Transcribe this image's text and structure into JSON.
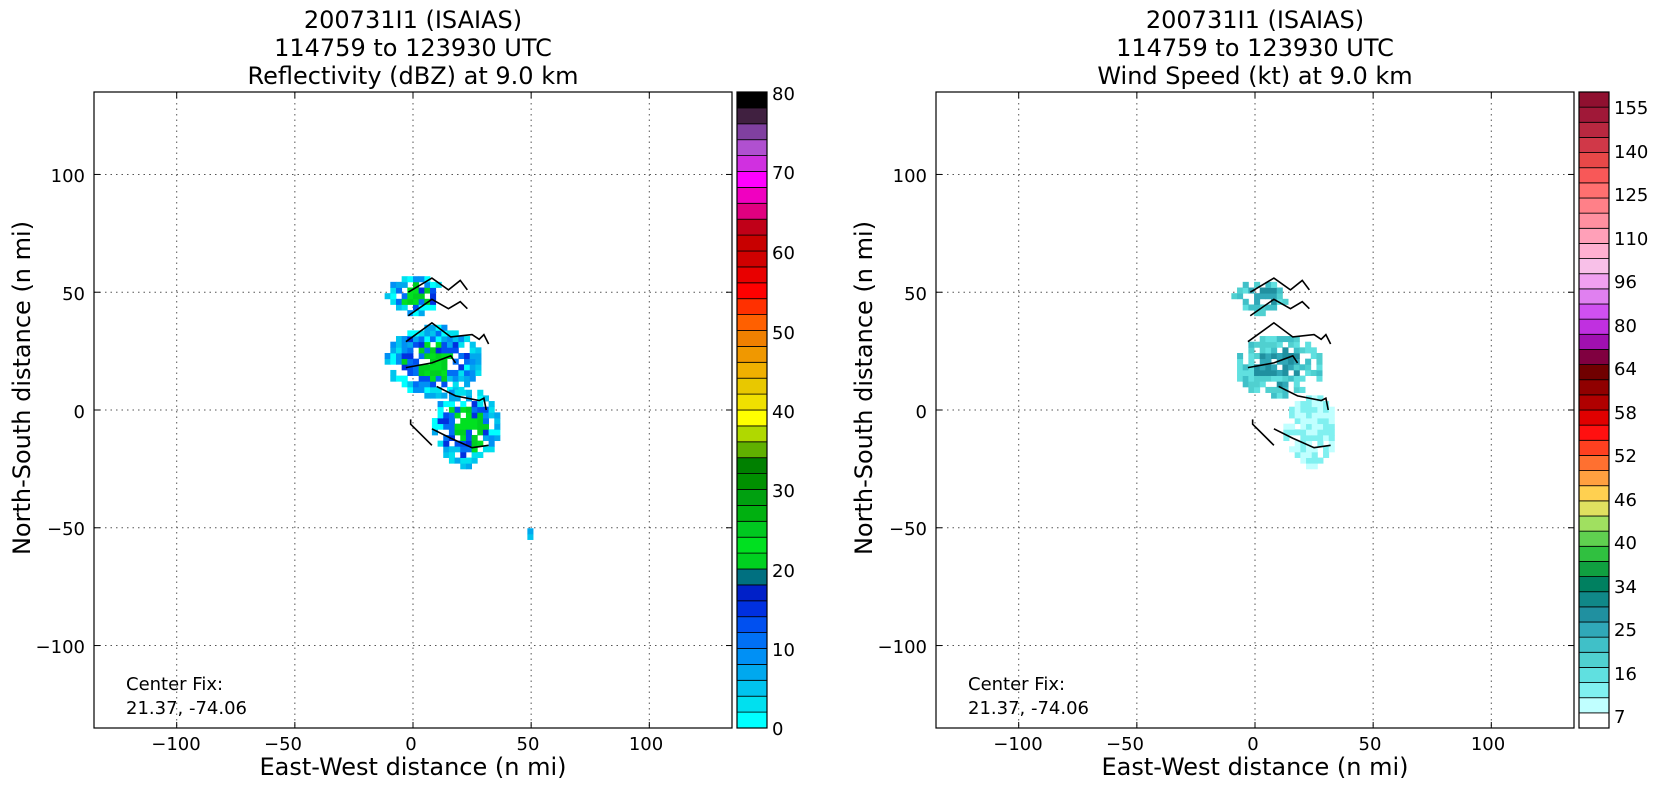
{
  "charts": [
    {
      "title_lines": [
        "200731I1 (ISAIAS)",
        "114759 to 123930 UTC",
        "Reflectivity (dBZ) at 9.0 km"
      ],
      "xlabel": "East-West distance (n mi)",
      "ylabel": "North-South distance (n mi)",
      "annotation": [
        "Center Fix:",
        "21.37, -74.06"
      ],
      "x_ticks": [
        "−100",
        "−50",
        "0",
        "50",
        "100"
      ],
      "y_ticks": [
        "100",
        "50",
        "0",
        "−50",
        "−100"
      ],
      "colorbar_labels": [
        "80",
        "70",
        "60",
        "50",
        "40",
        "30",
        "20",
        "10",
        "0"
      ]
    },
    {
      "title_lines": [
        "200731I1 (ISAIAS)",
        "114759 to 123930 UTC",
        "Wind Speed (kt) at 9.0 km"
      ],
      "xlabel": "East-West distance (n mi)",
      "ylabel": "North-South distance (n mi)",
      "annotation": [
        "Center Fix:",
        "21.37, -74.06"
      ],
      "x_ticks": [
        "−100",
        "−50",
        "0",
        "50",
        "100"
      ],
      "y_ticks": [
        "100",
        "50",
        "0",
        "−50",
        "−100"
      ],
      "colorbar_labels": [
        "155",
        "140",
        "125",
        "110",
        "96",
        "80",
        "64",
        "58",
        "52",
        "46",
        "40",
        "34",
        "25",
        "16",
        "7"
      ]
    }
  ],
  "chart_data": [
    {
      "type": "heatmap",
      "title": "200731I1 (ISAIAS) 114759 to 123930 UTC Reflectivity (dBZ) at 9.0 km",
      "xlabel": "East-West distance (n mi)",
      "ylabel": "North-South distance (n mi)",
      "xlim": [
        -135,
        135
      ],
      "ylim": [
        -135,
        135
      ],
      "grid": true,
      "colorbar": {
        "values": [
          0,
          10,
          20,
          30,
          40,
          50,
          60,
          70,
          80
        ],
        "colors": [
          "#00ffff",
          "#00e0ef",
          "#00c4ee",
          "#00a8ee",
          "#0090f5",
          "#0070f5",
          "#0050f0",
          "#0030e0",
          "#0020c8",
          "#007080",
          "#00d020",
          "#00e020",
          "#00c820",
          "#00b010",
          "#00a010",
          "#009000",
          "#008000",
          "#60b000",
          "#b0d800",
          "#ffff00",
          "#f0e000",
          "#e8c800",
          "#f0b000",
          "#f09800",
          "#f08000",
          "#ff6000",
          "#ff3000",
          "#ff0000",
          "#e80000",
          "#d00000",
          "#c80000",
          "#c00018",
          "#e00080",
          "#f000c0",
          "#ff00ff",
          "#d030e0",
          "#b050d0",
          "#8040a0",
          "#402040",
          "#000000"
        ]
      },
      "echo_regions": [
        {
          "label": "northern cluster",
          "x": [
            -12,
            12
          ],
          "y": [
            40,
            55
          ],
          "dbz_max": 20
        },
        {
          "label": "central band",
          "x": [
            -12,
            28
          ],
          "y": [
            5,
            34
          ],
          "dbz_max": 22
        },
        {
          "label": "southern band",
          "x": [
            8,
            35
          ],
          "y": [
            -25,
            8
          ],
          "dbz_max": 22
        },
        {
          "label": "isolated echo",
          "x": [
            46,
            50
          ],
          "y": [
            -55,
            -52
          ],
          "dbz_max": 5
        }
      ],
      "flight_track_segments": [
        [
          [
            -2,
            50
          ],
          [
            8,
            56
          ],
          [
            15,
            51
          ],
          [
            20,
            55
          ],
          [
            23,
            51
          ]
        ],
        [
          [
            -2,
            40
          ],
          [
            8,
            47
          ],
          [
            15,
            43
          ],
          [
            20,
            46
          ],
          [
            23,
            43
          ]
        ],
        [
          [
            -3,
            29
          ],
          [
            8,
            37
          ],
          [
            16,
            31
          ],
          [
            25,
            32
          ],
          [
            28,
            30
          ],
          [
            30,
            32
          ],
          [
            32,
            28
          ]
        ],
        [
          [
            -3,
            18
          ],
          [
            8,
            20
          ],
          [
            16,
            23
          ],
          [
            18,
            20
          ]
        ],
        [
          [
            10,
            10
          ],
          [
            18,
            6
          ],
          [
            28,
            4
          ],
          [
            30,
            5
          ],
          [
            31,
            0
          ]
        ],
        [
          [
            -1,
            -4
          ],
          [
            -1,
            -6
          ],
          [
            8,
            -15
          ]
        ],
        [
          [
            8,
            -8
          ],
          [
            16,
            -12
          ],
          [
            25,
            -16
          ],
          [
            32,
            -15
          ]
        ]
      ]
    },
    {
      "type": "heatmap",
      "title": "200731I1 (ISAIAS) 114759 to 123930 UTC Wind Speed (kt) at 9.0 km",
      "xlabel": "East-West distance (n mi)",
      "ylabel": "North-South distance (n mi)",
      "xlim": [
        -135,
        135
      ],
      "ylim": [
        -135,
        135
      ],
      "grid": true,
      "colorbar": {
        "values": [
          7,
          16,
          25,
          34,
          40,
          46,
          52,
          58,
          64,
          80,
          96,
          110,
          125,
          140,
          155
        ],
        "colors": [
          "#ffffff",
          "#c0ffff",
          "#80f0f0",
          "#60e0e0",
          "#50d0d0",
          "#40c0c8",
          "#30a8b8",
          "#2090a0",
          "#108888",
          "#008060",
          "#10a040",
          "#30c040",
          "#60d050",
          "#a0e060",
          "#e0e060",
          "#ffd050",
          "#ffa040",
          "#ff7030",
          "#ff4020",
          "#ff1010",
          "#e00000",
          "#b00000",
          "#900000",
          "#700000",
          "#800040",
          "#a010b0",
          "#c030e0",
          "#d050f0",
          "#e080f0",
          "#f0a0f0",
          "#f8c0e8",
          "#ffb0d0",
          "#ffa0b8",
          "#ff90a0",
          "#ff8088",
          "#ff7070",
          "#f85858",
          "#e84848",
          "#d03848",
          "#b82840",
          "#a01838",
          "#901030"
        ]
      },
      "wind_regions": [
        {
          "label": "northern cluster",
          "x": [
            -10,
            12
          ],
          "y": [
            40,
            54
          ],
          "kt_range": [
            16,
            25
          ]
        },
        {
          "label": "central band",
          "x": [
            -10,
            28
          ],
          "y": [
            5,
            30
          ],
          "kt_range": [
            16,
            34
          ]
        },
        {
          "label": "southern band",
          "x": [
            12,
            33
          ],
          "y": [
            -25,
            5
          ],
          "kt_range": [
            7,
            16
          ]
        }
      ],
      "flight_track_segments": [
        [
          [
            -2,
            50
          ],
          [
            8,
            56
          ],
          [
            15,
            51
          ],
          [
            20,
            55
          ],
          [
            23,
            51
          ]
        ],
        [
          [
            -2,
            40
          ],
          [
            8,
            47
          ],
          [
            15,
            43
          ],
          [
            20,
            46
          ],
          [
            23,
            43
          ]
        ],
        [
          [
            -3,
            29
          ],
          [
            8,
            37
          ],
          [
            16,
            31
          ],
          [
            25,
            32
          ],
          [
            28,
            30
          ],
          [
            30,
            32
          ],
          [
            32,
            28
          ]
        ],
        [
          [
            -3,
            18
          ],
          [
            8,
            20
          ],
          [
            16,
            23
          ],
          [
            18,
            20
          ]
        ],
        [
          [
            10,
            10
          ],
          [
            18,
            6
          ],
          [
            28,
            4
          ],
          [
            30,
            5
          ],
          [
            31,
            0
          ]
        ],
        [
          [
            -1,
            -4
          ],
          [
            -1,
            -6
          ],
          [
            8,
            -15
          ]
        ],
        [
          [
            8,
            -8
          ],
          [
            16,
            -12
          ],
          [
            25,
            -16
          ],
          [
            32,
            -15
          ]
        ]
      ]
    }
  ]
}
